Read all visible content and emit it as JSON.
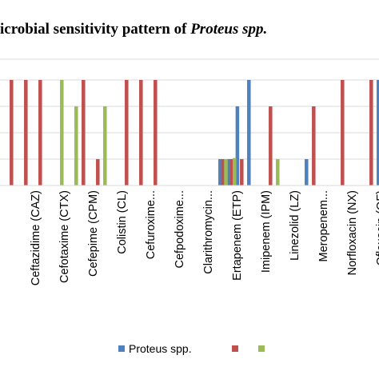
{
  "chart_data": {
    "type": "bar",
    "title": {
      "prefix": "icrobial sensitivity pattern of ",
      "italic": "Proteus spp."
    },
    "categories": [
      "",
      "Ceftazidime (CAZ)",
      "Cefotaxime (CTX)",
      "Cefepime (CPM)",
      "Colistin (CL)",
      "Cefuroxime...",
      "Cefpodoxime...",
      "Clarithromycin...",
      "Ertapenem (ETP)",
      "Imipenem (IPM)",
      "Linezolid (LZ)",
      "Meropenem...",
      "Norfloxacin (NX)",
      "Ofloxacin (OF)"
    ],
    "ylim": [
      0,
      100
    ],
    "grid": true,
    "legend_position": "bottom",
    "colors": [
      "#4f81bd",
      "#c0504d",
      "#9bbb59"
    ],
    "series": [
      {
        "name": "Proteus spp.",
        "bars": [
          {
            "x": 1.0,
            "value": 0
          },
          {
            "x": 4.85,
            "value": 25
          },
          {
            "x": 14.85,
            "value": 25
          },
          {
            "x": 15.45,
            "value": 25
          },
          {
            "x": 16.05,
            "value": 75
          },
          {
            "x": 16.85,
            "value": 100
          },
          {
            "x": 20.85,
            "value": 25
          },
          {
            "x": 25.85,
            "value": 100
          }
        ]
      },
      {
        "name": "",
        "bars": [
          {
            "x": 0.35,
            "value": 100
          },
          {
            "x": 1.35,
            "value": 100
          },
          {
            "x": 2.35,
            "value": 100
          },
          {
            "x": 5.35,
            "value": 100
          },
          {
            "x": 6.35,
            "value": 25
          },
          {
            "x": 8.35,
            "value": 100
          },
          {
            "x": 9.35,
            "value": 100
          },
          {
            "x": 10.35,
            "value": 100
          },
          {
            "x": 15.05,
            "value": 25
          },
          {
            "x": 15.65,
            "value": 25
          },
          {
            "x": 16.35,
            "value": 25
          },
          {
            "x": 18.35,
            "value": 75
          },
          {
            "x": 21.35,
            "value": 75
          },
          {
            "x": 23.35,
            "value": 100
          },
          {
            "x": 25.35,
            "value": 100
          }
        ]
      },
      {
        "name": "",
        "bars": [
          {
            "x": 3.85,
            "value": 100
          },
          {
            "x": 4.85,
            "value": 75
          },
          {
            "x": 6.85,
            "value": 75
          },
          {
            "x": 15.25,
            "value": 25
          },
          {
            "x": 15.85,
            "value": 26
          },
          {
            "x": 18.85,
            "value": 25
          }
        ]
      }
    ]
  }
}
